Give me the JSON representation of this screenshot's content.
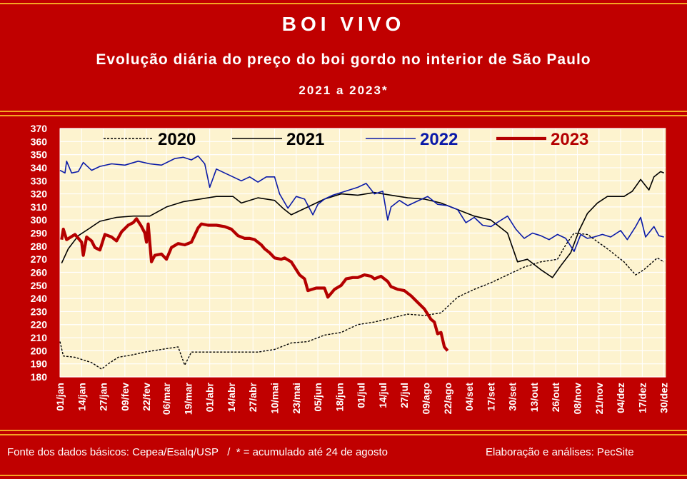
{
  "header": {
    "title": "BOI VIVO",
    "subtitle": "Evolução diária do preço do boi gordo no interior de São Paulo",
    "period": "2021 a 2023*"
  },
  "footer": {
    "source": "Fonte dos dados básicos: Cepea/Esalq/USP   /  * = acumulado até 24 de agosto",
    "credit": "Elaboração e análises: PecSite"
  },
  "colors": {
    "background": "#c00000",
    "plot_bg": "#fdf3cf",
    "series_2020": "#000000",
    "series_2021": "#000000",
    "series_2022": "#0a1aa8",
    "series_2023": "#b40000"
  },
  "chart_data": {
    "type": "line",
    "title": "",
    "xlabel": "",
    "ylabel": "",
    "ylim": [
      180,
      370
    ],
    "yticks": [
      180,
      190,
      200,
      210,
      220,
      230,
      240,
      250,
      260,
      270,
      280,
      290,
      300,
      310,
      320,
      330,
      340,
      350,
      360,
      370
    ],
    "xlim": [
      1,
      365
    ],
    "xticks": [
      {
        "label": "01/jan",
        "day": 1
      },
      {
        "label": "14/jan",
        "day": 14
      },
      {
        "label": "27/jan",
        "day": 27
      },
      {
        "label": "09/fev",
        "day": 40
      },
      {
        "label": "22/fev",
        "day": 53
      },
      {
        "label": "06/mar",
        "day": 65
      },
      {
        "label": "19/mar",
        "day": 78
      },
      {
        "label": "01/abr",
        "day": 91
      },
      {
        "label": "14/abr",
        "day": 104
      },
      {
        "label": "27/abr",
        "day": 117
      },
      {
        "label": "10/mai",
        "day": 130
      },
      {
        "label": "23/mai",
        "day": 143
      },
      {
        "label": "05/jun",
        "day": 156
      },
      {
        "label": "18/jun",
        "day": 169
      },
      {
        "label": "01/jul",
        "day": 182
      },
      {
        "label": "14/jul",
        "day": 195
      },
      {
        "label": "27/jul",
        "day": 208
      },
      {
        "label": "09/ago",
        "day": 221
      },
      {
        "label": "22/ago",
        "day": 234
      },
      {
        "label": "04/set",
        "day": 247
      },
      {
        "label": "17/set",
        "day": 260
      },
      {
        "label": "30/set",
        "day": 273
      },
      {
        "label": "13/out",
        "day": 286
      },
      {
        "label": "26/out",
        "day": 299
      },
      {
        "label": "08/nov",
        "day": 312
      },
      {
        "label": "21/nov",
        "day": 325
      },
      {
        "label": "04/dez",
        "day": 338
      },
      {
        "label": "17/dez",
        "day": 351
      },
      {
        "label": "30/dez",
        "day": 364
      }
    ],
    "grid": true,
    "legend": "top",
    "series": [
      {
        "name": "2020",
        "style": "dashed",
        "points": [
          [
            1,
            207
          ],
          [
            3,
            196
          ],
          [
            10,
            195
          ],
          [
            20,
            191
          ],
          [
            26,
            186
          ],
          [
            30,
            190
          ],
          [
            36,
            195
          ],
          [
            45,
            197
          ],
          [
            52,
            199
          ],
          [
            62,
            201
          ],
          [
            72,
            203
          ],
          [
            76,
            189
          ],
          [
            80,
            199
          ],
          [
            100,
            199
          ],
          [
            120,
            199
          ],
          [
            130,
            201
          ],
          [
            140,
            206
          ],
          [
            150,
            207
          ],
          [
            160,
            212
          ],
          [
            170,
            214
          ],
          [
            180,
            220
          ],
          [
            190,
            222
          ],
          [
            200,
            225
          ],
          [
            210,
            228
          ],
          [
            220,
            227
          ],
          [
            230,
            229
          ],
          [
            240,
            241
          ],
          [
            250,
            247
          ],
          [
            260,
            252
          ],
          [
            270,
            258
          ],
          [
            280,
            264
          ],
          [
            290,
            268
          ],
          [
            300,
            270
          ],
          [
            305,
            281
          ],
          [
            310,
            290
          ],
          [
            318,
            289
          ],
          [
            330,
            278
          ],
          [
            340,
            268
          ],
          [
            347,
            258
          ],
          [
            352,
            262
          ],
          [
            360,
            271
          ],
          [
            364,
            268
          ]
        ]
      },
      {
        "name": "2021",
        "style": "solid",
        "points": [
          [
            2,
            267
          ],
          [
            6,
            278
          ],
          [
            12,
            288
          ],
          [
            18,
            293
          ],
          [
            25,
            299
          ],
          [
            35,
            302
          ],
          [
            45,
            303
          ],
          [
            55,
            303
          ],
          [
            65,
            310
          ],
          [
            75,
            314
          ],
          [
            85,
            316
          ],
          [
            95,
            318
          ],
          [
            105,
            318
          ],
          [
            110,
            313
          ],
          [
            120,
            317
          ],
          [
            130,
            315
          ],
          [
            135,
            309
          ],
          [
            140,
            304
          ],
          [
            150,
            310
          ],
          [
            160,
            316
          ],
          [
            170,
            320
          ],
          [
            180,
            319
          ],
          [
            190,
            321
          ],
          [
            200,
            319
          ],
          [
            210,
            317
          ],
          [
            220,
            316
          ],
          [
            230,
            313
          ],
          [
            240,
            308
          ],
          [
            250,
            303
          ],
          [
            260,
            300
          ],
          [
            270,
            290
          ],
          [
            276,
            268
          ],
          [
            282,
            270
          ],
          [
            290,
            262
          ],
          [
            297,
            256
          ],
          [
            302,
            265
          ],
          [
            308,
            275
          ],
          [
            313,
            292
          ],
          [
            318,
            305
          ],
          [
            324,
            313
          ],
          [
            330,
            318
          ],
          [
            340,
            318
          ],
          [
            345,
            322
          ],
          [
            350,
            331
          ],
          [
            355,
            323
          ],
          [
            358,
            333
          ],
          [
            362,
            337
          ],
          [
            364,
            336
          ]
        ]
      },
      {
        "name": "2022",
        "style": "solid",
        "points": [
          [
            1,
            338
          ],
          [
            4,
            336
          ],
          [
            5,
            345
          ],
          [
            8,
            336
          ],
          [
            12,
            337
          ],
          [
            15,
            344
          ],
          [
            20,
            338
          ],
          [
            25,
            341
          ],
          [
            32,
            343
          ],
          [
            40,
            342
          ],
          [
            48,
            345
          ],
          [
            55,
            343
          ],
          [
            62,
            342
          ],
          [
            70,
            347
          ],
          [
            75,
            348
          ],
          [
            80,
            346
          ],
          [
            84,
            349
          ],
          [
            88,
            343
          ],
          [
            91,
            325
          ],
          [
            95,
            339
          ],
          [
            100,
            336
          ],
          [
            105,
            333
          ],
          [
            110,
            330
          ],
          [
            115,
            333
          ],
          [
            120,
            329
          ],
          [
            125,
            333
          ],
          [
            130,
            333
          ],
          [
            133,
            320
          ],
          [
            138,
            309
          ],
          [
            143,
            318
          ],
          [
            148,
            316
          ],
          [
            153,
            304
          ],
          [
            156,
            312
          ],
          [
            160,
            316
          ],
          [
            165,
            319
          ],
          [
            170,
            321
          ],
          [
            180,
            325
          ],
          [
            185,
            328
          ],
          [
            190,
            320
          ],
          [
            195,
            322
          ],
          [
            198,
            300
          ],
          [
            200,
            310
          ],
          [
            205,
            315
          ],
          [
            210,
            311
          ],
          [
            215,
            314
          ],
          [
            222,
            318
          ],
          [
            228,
            312
          ],
          [
            234,
            311
          ],
          [
            240,
            308
          ],
          [
            245,
            298
          ],
          [
            250,
            302
          ],
          [
            255,
            296
          ],
          [
            260,
            295
          ],
          [
            265,
            299
          ],
          [
            270,
            303
          ],
          [
            275,
            293
          ],
          [
            280,
            286
          ],
          [
            285,
            290
          ],
          [
            290,
            288
          ],
          [
            295,
            285
          ],
          [
            300,
            289
          ],
          [
            305,
            286
          ],
          [
            310,
            276
          ],
          [
            314,
            289
          ],
          [
            318,
            286
          ],
          [
            322,
            287
          ],
          [
            327,
            289
          ],
          [
            332,
            287
          ],
          [
            338,
            292
          ],
          [
            342,
            285
          ],
          [
            347,
            295
          ],
          [
            350,
            302
          ],
          [
            353,
            287
          ],
          [
            358,
            295
          ],
          [
            361,
            288
          ],
          [
            364,
            287
          ]
        ]
      },
      {
        "name": "2023",
        "style": "bold",
        "points": [
          [
            2,
            285
          ],
          [
            3,
            293
          ],
          [
            5,
            285
          ],
          [
            10,
            289
          ],
          [
            14,
            283
          ],
          [
            15,
            273
          ],
          [
            17,
            287
          ],
          [
            20,
            284
          ],
          [
            22,
            279
          ],
          [
            25,
            277
          ],
          [
            28,
            289
          ],
          [
            32,
            287
          ],
          [
            35,
            284
          ],
          [
            38,
            291
          ],
          [
            42,
            296
          ],
          [
            45,
            298
          ],
          [
            47,
            301
          ],
          [
            50,
            295
          ],
          [
            52,
            290
          ],
          [
            53,
            283
          ],
          [
            54,
            297
          ],
          [
            56,
            268
          ],
          [
            58,
            273
          ],
          [
            62,
            274
          ],
          [
            65,
            270
          ],
          [
            68,
            279
          ],
          [
            72,
            282
          ],
          [
            76,
            281
          ],
          [
            80,
            283
          ],
          [
            84,
            294
          ],
          [
            86,
            297
          ],
          [
            90,
            296
          ],
          [
            95,
            296
          ],
          [
            100,
            295
          ],
          [
            104,
            293
          ],
          [
            108,
            288
          ],
          [
            112,
            286
          ],
          [
            115,
            286
          ],
          [
            118,
            285
          ],
          [
            122,
            281
          ],
          [
            124,
            278
          ],
          [
            127,
            275
          ],
          [
            130,
            271
          ],
          [
            134,
            270
          ],
          [
            136,
            271
          ],
          [
            140,
            268
          ],
          [
            145,
            258
          ],
          [
            148,
            255
          ],
          [
            150,
            246
          ],
          [
            155,
            248
          ],
          [
            160,
            248
          ],
          [
            162,
            241
          ],
          [
            166,
            247
          ],
          [
            170,
            250
          ],
          [
            173,
            255
          ],
          [
            177,
            256
          ],
          [
            180,
            256
          ],
          [
            184,
            258
          ],
          [
            188,
            257
          ],
          [
            190,
            255
          ],
          [
            194,
            257
          ],
          [
            198,
            253
          ],
          [
            200,
            249
          ],
          [
            204,
            247
          ],
          [
            208,
            246
          ],
          [
            212,
            242
          ],
          [
            216,
            237
          ],
          [
            220,
            232
          ],
          [
            224,
            224
          ],
          [
            226,
            222
          ],
          [
            228,
            213
          ],
          [
            230,
            214
          ],
          [
            232,
            203
          ],
          [
            234,
            200
          ]
        ]
      }
    ]
  }
}
